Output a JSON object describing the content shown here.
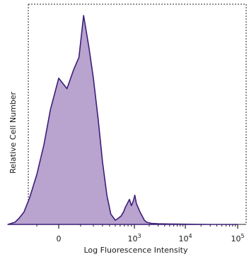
{
  "chart_data": {
    "type": "area",
    "title": "",
    "xlabel": "Log Fluorescence Intensity",
    "ylabel": "Relative Cell Number",
    "x_scale": "biexponential",
    "x_ticks": [
      {
        "value": 0,
        "base": "0",
        "exp": ""
      },
      {
        "value": 1000,
        "base": "10",
        "exp": "3"
      },
      {
        "value": 10000,
        "base": "10",
        "exp": "4"
      },
      {
        "value": 100000,
        "base": "10",
        "exp": "5"
      }
    ],
    "y_ticks_labeled": false,
    "ylim": [
      0,
      100
    ],
    "grid": false,
    "legend": "none",
    "fill_color": "#b9a3cf",
    "line_color": "#3c1f78",
    "series": [
      {
        "x": [
          -400,
          -300,
          -250,
          -200,
          -150,
          -100,
          -60,
          -30,
          0,
          30,
          60,
          90,
          120,
          160,
          200,
          250,
          300,
          360,
          420,
          500,
          560,
          620,
          680,
          720,
          780,
          840,
          900,
          960,
          1020,
          1100,
          1200,
          1300,
          1450,
          1600,
          1800,
          2200,
          3000,
          5000,
          10000,
          30000,
          100000
        ],
        "y": [
          0,
          1,
          3,
          6,
          13,
          24,
          38,
          55,
          70,
          65,
          74,
          80,
          100,
          85,
          70,
          50,
          30,
          14,
          5,
          2,
          3,
          4,
          6,
          8,
          10,
          12,
          9,
          11,
          14,
          10,
          8,
          6,
          4,
          2,
          1,
          0.5,
          0.3,
          0.2,
          0.1,
          0,
          0
        ]
      }
    ]
  }
}
